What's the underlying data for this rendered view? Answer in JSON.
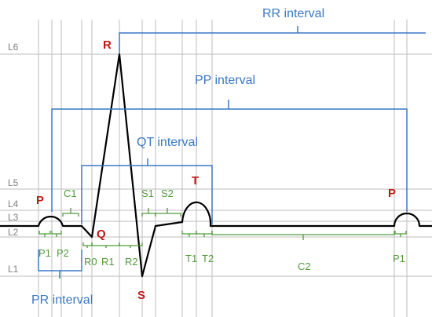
{
  "levels": {
    "L6": "L6",
    "L5": "L5",
    "L4": "L4",
    "L3": "L3",
    "L2": "L2",
    "L1": "L1"
  },
  "intervals": {
    "rr": "RR interval",
    "pp": "PP interval",
    "qt": "QT interval",
    "pr": "PR interval"
  },
  "waves": {
    "p_first": "P",
    "q": "Q",
    "r": "R",
    "s": "S",
    "t": "T",
    "p_second": "P"
  },
  "segments": {
    "p1": "P1",
    "p2": "P2",
    "c1": "C1",
    "r0": "R0",
    "r1": "R1",
    "r2": "R2",
    "s1": "S1",
    "s2": "S2",
    "t1": "T1",
    "t2": "T2",
    "c2": "C2",
    "p1_second": "P1"
  },
  "colors": {
    "interval_blue": "#3a78c5",
    "segment_green": "#4f9a3a",
    "wave_red": "#c01818",
    "trace": "#000000",
    "grid": "#bdbdbd"
  }
}
